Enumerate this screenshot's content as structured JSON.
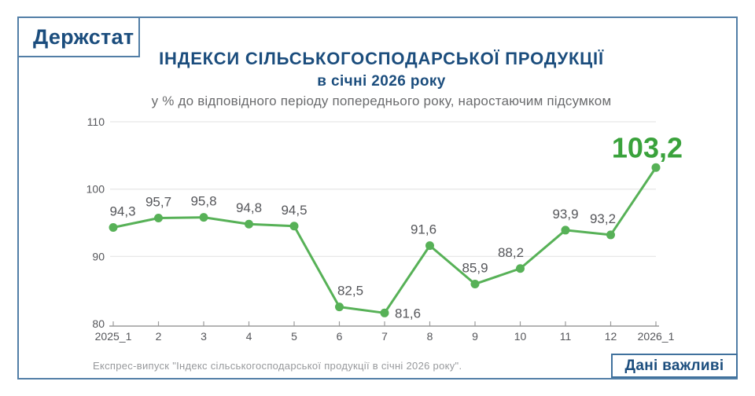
{
  "logo": {
    "text": "Держстат"
  },
  "header": {
    "title": "ІНДЕКСИ СІЛЬСЬКОГОСПОДАРСЬКОЇ ПРОДУКЦІЇ",
    "period": "в січні 2026 року",
    "subtitle": "у % до відповідного періоду попереднього року, наростаючим підсумком"
  },
  "chart_data": {
    "type": "line",
    "title": "ІНДЕКСИ СІЛЬСЬКОГОСПОДАРСЬКОЇ ПРОДУКЦІЇ в січні 2026 року",
    "subtitle": "у % до відповідного періоду попереднього року, наростаючим підсумком",
    "categories": [
      "2025_1",
      "2",
      "3",
      "4",
      "5",
      "6",
      "7",
      "8",
      "9",
      "10",
      "11",
      "12",
      "2026_1"
    ],
    "values": [
      94.3,
      95.7,
      95.8,
      94.8,
      94.5,
      82.5,
      81.6,
      91.6,
      85.9,
      88.2,
      93.9,
      93.2,
      103.2
    ],
    "value_labels": [
      "94,3",
      "95,7",
      "95,8",
      "94,8",
      "94,5",
      "82,5",
      "81,6",
      "91,6",
      "85,9",
      "88,2",
      "93,9",
      "93,2",
      "103,2"
    ],
    "label_pos": [
      "above",
      "above",
      "above",
      "above",
      "above",
      "above",
      "right",
      "above",
      "above",
      "above",
      "above",
      "above",
      "big"
    ],
    "label_dx": [
      12,
      0,
      0,
      0,
      0,
      14,
      0,
      -8,
      0,
      -12,
      0,
      -10,
      0
    ],
    "ylim": [
      80,
      110
    ],
    "yticks": [
      80,
      90,
      100,
      110
    ],
    "grid": "horizontal",
    "legend": "none",
    "xlabel": "",
    "ylabel": "",
    "line_color": "#57b157",
    "emphasis_color": "#3aa23c",
    "label_color": "#55565a"
  },
  "footer": {
    "source": "Експрес-випуск \"Індекс сільськогосподарської продукції в січні 2026 року\".",
    "badge": "Дані важливі"
  }
}
